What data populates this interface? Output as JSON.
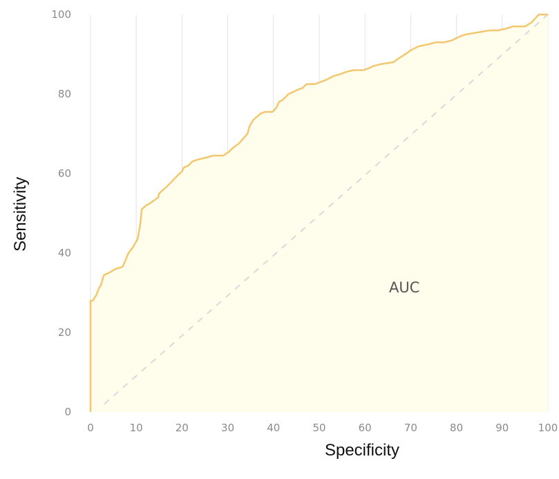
{
  "chart_data": {
    "type": "line",
    "title": "",
    "xlabel": "Specificity",
    "ylabel": "Sensitivity",
    "xlim": [
      0,
      100
    ],
    "ylim": [
      0,
      100
    ],
    "x_ticks": [
      "0",
      "10",
      "20",
      "30",
      "40",
      "50",
      "60",
      "70",
      "80",
      "90",
      "100"
    ],
    "y_ticks": [
      "0",
      "20",
      "40",
      "60",
      "80",
      "100"
    ],
    "grid": "vertical",
    "annotation": "AUC",
    "colors": {
      "curve": "#f2c76e",
      "fill": "#fffdeb",
      "diagonal": "#d9d9d9",
      "grid": "#e3e3e3"
    },
    "series": [
      {
        "x": [
          0,
          0,
          0.5,
          1.3,
          1.8,
          2.3,
          2.8,
          3.0,
          4.0,
          5.5,
          7.0,
          7.6,
          8.3,
          9.3,
          10.3,
          10.9,
          11.2,
          12.2,
          13.0,
          14.8,
          15.0,
          16.5,
          17.8,
          19.0,
          20.0,
          20.4,
          21.4,
          22.2,
          23.4,
          25.3,
          26.7,
          29.0,
          30.3,
          31.2,
          32.4,
          34.3,
          34.8,
          35.6,
          37.1,
          38.1,
          39.8,
          40.6,
          41.2,
          42.0,
          43.3,
          45.2,
          46.3,
          47.3,
          49.1,
          51.4,
          53.1,
          54.6,
          55.7,
          57.5,
          59.6,
          60.9,
          61.7,
          63.4,
          66.2,
          67.4,
          68.8,
          70.0,
          71.7,
          73.8,
          75.5,
          77.2,
          79.0,
          80.8,
          82.0,
          84.7,
          87.2,
          88.0,
          89.1,
          91.0,
          92.3,
          95.0,
          96.4,
          97.2,
          98.0,
          100.0
        ],
        "y": [
          0,
          28,
          28,
          29.5,
          31,
          32,
          34,
          34.5,
          35,
          36,
          36.5,
          38,
          40,
          41.5,
          43.5,
          47.5,
          51,
          52,
          52.5,
          54,
          55,
          56.5,
          58,
          59.5,
          60.5,
          61.5,
          62,
          63,
          63.5,
          64,
          64.5,
          64.5,
          65.5,
          66.5,
          67.5,
          70,
          72,
          73.5,
          75,
          75.5,
          75.5,
          76.5,
          78,
          78.5,
          80,
          81,
          81.5,
          82.5,
          82.5,
          83.5,
          84.5,
          85,
          85.5,
          86,
          86,
          86.5,
          87,
          87.5,
          88,
          89,
          90,
          91,
          92,
          92.5,
          93,
          93,
          93.5,
          94.5,
          95,
          95.5,
          96,
          96,
          96,
          96.5,
          97,
          97,
          98,
          99,
          100,
          100
        ]
      }
    ]
  }
}
